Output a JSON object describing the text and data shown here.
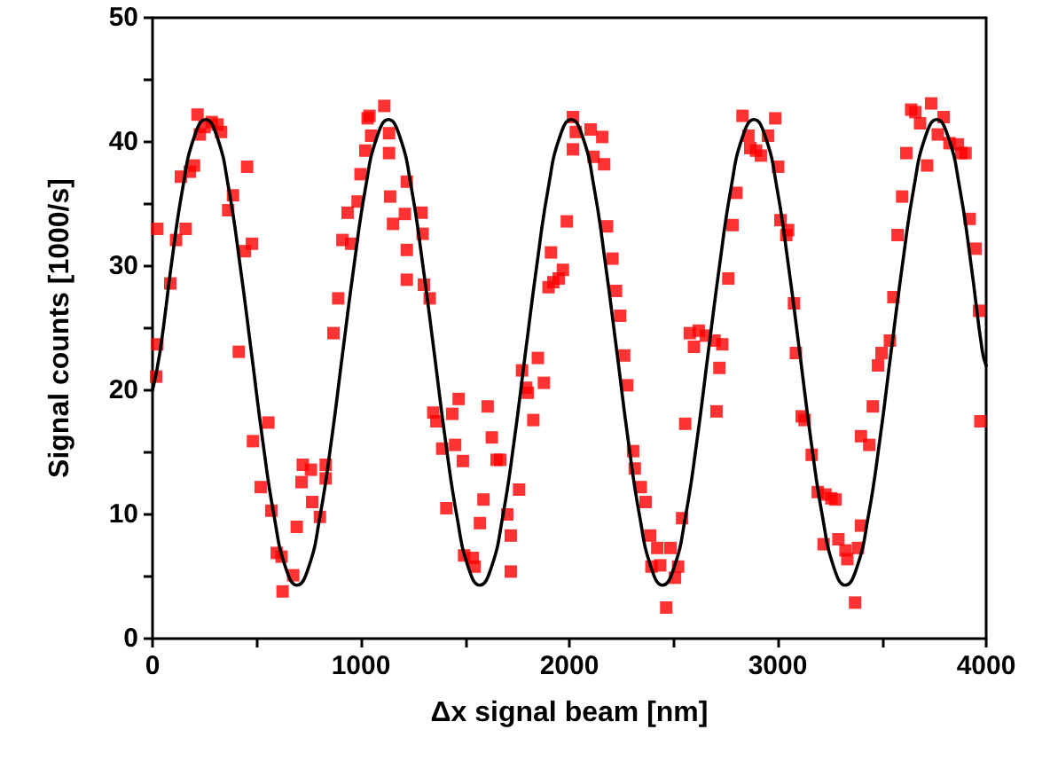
{
  "chart_data": {
    "type": "scatter",
    "xlabel": "Δx signal beam [nm]",
    "ylabel": "Signal counts [1000/s]",
    "xlim": [
      0,
      4000
    ],
    "ylim": [
      0,
      50
    ],
    "xticks": [
      0,
      {
        "value": 500,
        "label": null
      },
      1000,
      {
        "value": 1500,
        "label": null
      },
      2000,
      {
        "value": 2500,
        "label": null
      },
      3000,
      {
        "value": 3500,
        "label": null
      },
      4000
    ],
    "yticks": [
      0,
      {
        "value": 5,
        "label": null
      },
      10,
      {
        "value": 15,
        "label": null
      },
      20,
      {
        "value": 25,
        "label": null
      },
      30,
      {
        "value": 35,
        "label": null
      },
      40,
      {
        "value": 45,
        "label": null
      },
      50
    ],
    "grid": false,
    "series": [
      {
        "type": "scatter",
        "color": "#ff0000",
        "marker": "square",
        "x": [
          23,
          23,
          17,
          85,
          113,
          159,
          136,
          179,
          199,
          216,
          227,
          250,
          284,
          312,
          329,
          454,
          386,
          363,
          477,
          443,
          414,
          556,
          482,
          519,
          570,
          596,
          619,
          624,
          675,
          692,
          721,
          760,
          715,
          766,
          803,
          831,
          831,
          868,
          891,
          911,
          936,
          953,
          984,
          998,
          1021,
          1032,
          1049,
          1041,
          1112,
          1135,
          1135,
          1220,
          1140,
          1154,
          1211,
          1291,
          1296,
          1220,
          1220,
          1302,
          1330,
          1347,
          1362,
          1438,
          1469,
          1390,
          1452,
          1489,
          1410,
          1495,
          1537,
          1546,
          1571,
          1588,
          1608,
          1628,
          1651,
          1668,
          1702,
          1719,
          1719,
          1759,
          1773,
          1793,
          1801,
          1827,
          1849,
          1878,
          1900,
          1923,
          1949,
          1969,
          1912,
          1988,
          2017,
          2017,
          2031,
          2102,
          2158,
          2116,
          2167,
          2181,
          2207,
          2224,
          2244,
          2263,
          2278,
          2306,
          2314,
          2343,
          2366,
          2388,
          2422,
          2394,
          2436,
          2485,
          2522,
          2507,
          2465,
          2541,
          2556,
          2578,
          2598,
          2621,
          2655,
          2697,
          2734,
          2720,
          2706,
          2763,
          2783,
          2802,
          2831,
          2859,
          2868,
          2896,
          2919,
          2953,
          2988,
          3002,
          3013,
          3050,
          3041,
          3078,
          3087,
          3115,
          3129,
          3163,
          3192,
          3229,
          3257,
          3277,
          3220,
          3291,
          3325,
          3334,
          3385,
          3399,
          3371,
          3399,
          3439,
          3456,
          3481,
          3498,
          3538,
          3555,
          3575,
          3597,
          3617,
          3640,
          3660,
          3683,
          3717,
          3736,
          3768,
          3796,
          3824,
          3864,
          3881,
          3901,
          3921,
          3949,
          3966,
          3972
        ],
        "values": [
          33.0,
          23.7,
          21.1,
          28.6,
          32.1,
          33.0,
          37.2,
          37.6,
          38.1,
          42.2,
          40.6,
          41.2,
          41.6,
          41.4,
          40.8,
          38.0,
          35.7,
          34.5,
          31.8,
          31.2,
          23.1,
          17.4,
          15.9,
          12.2,
          10.3,
          6.9,
          6.6,
          3.8,
          5.1,
          9.0,
          14.0,
          13.6,
          12.6,
          11.0,
          9.8,
          14.0,
          12.9,
          24.6,
          27.4,
          32.1,
          34.3,
          31.8,
          35.2,
          37.4,
          39.3,
          41.9,
          40.5,
          42.1,
          42.9,
          40.7,
          39.1,
          36.8,
          35.6,
          33.4,
          34.2,
          34.3,
          32.6,
          31.3,
          28.9,
          28.5,
          27.4,
          18.2,
          17.5,
          18.1,
          19.3,
          15.3,
          15.6,
          14.3,
          10.5,
          6.7,
          6.5,
          5.8,
          9.3,
          11.2,
          18.7,
          16.2,
          14.4,
          14.4,
          10.0,
          8.3,
          5.4,
          12.0,
          21.6,
          20.2,
          19.8,
          17.6,
          22.6,
          20.6,
          28.3,
          28.7,
          29.0,
          29.7,
          31.1,
          33.6,
          42.0,
          39.4,
          40.8,
          41.0,
          40.4,
          38.8,
          38.2,
          33.2,
          30.6,
          28.0,
          26.0,
          22.8,
          20.4,
          15.1,
          13.7,
          12.2,
          11.0,
          8.3,
          7.3,
          5.8,
          5.9,
          7.3,
          5.8,
          4.9,
          2.5,
          9.7,
          17.3,
          24.6,
          23.5,
          24.8,
          24.4,
          24.0,
          23.7,
          21.8,
          18.3,
          29.0,
          33.3,
          35.9,
          42.1,
          40.5,
          39.5,
          39.3,
          38.9,
          40.5,
          41.9,
          38.0,
          33.7,
          32.9,
          32.5,
          27.0,
          23.0,
          17.9,
          17.6,
          14.8,
          11.8,
          11.6,
          11.3,
          11.2,
          7.6,
          8.0,
          7.1,
          6.4,
          7.3,
          9.1,
          2.9,
          16.3,
          15.6,
          18.7,
          22.0,
          23.0,
          24.0,
          27.5,
          32.5,
          35.6,
          39.1,
          42.6,
          42.4,
          41.5,
          38.1,
          43.1,
          40.6,
          42.0,
          39.9,
          39.8,
          39.1,
          39.1,
          33.8,
          31.4,
          26.4,
          17.5
        ]
      },
      {
        "type": "line",
        "color": "#000000",
        "marker": "none",
        "line_style": "solid",
        "x": [
          0,
          36,
          91,
          145,
          200,
          255,
          310,
          365,
          419,
          474,
          529,
          584,
          639,
          693,
          748,
          803,
          858,
          913,
          968,
          1022,
          1077,
          1132,
          1187,
          1242,
          1296,
          1351,
          1406,
          1461,
          1516,
          1570,
          1625,
          1680,
          1735,
          1790,
          1845,
          1899,
          1954,
          2009,
          2064,
          2119,
          2173,
          2228,
          2283,
          2338,
          2393,
          2447,
          2502,
          2557,
          2612,
          2667,
          2722,
          2776,
          2831,
          2886,
          2941,
          2996,
          3050,
          3105,
          3160,
          3215,
          3270,
          3324,
          3379,
          3434,
          3489,
          3544,
          3599,
          3653,
          3708,
          3763,
          3818,
          3873,
          3927,
          3982,
          4000
        ],
        "values": [
          20.0,
          23.1,
          30.2,
          36.3,
          40.4,
          41.8,
          40.4,
          36.3,
          30.2,
          23.1,
          15.9,
          9.8,
          5.7,
          4.3,
          5.7,
          9.8,
          15.9,
          23.1,
          30.2,
          36.3,
          40.4,
          41.8,
          40.4,
          36.3,
          30.2,
          23.1,
          15.9,
          9.8,
          5.7,
          4.3,
          5.7,
          9.8,
          15.9,
          23.1,
          30.2,
          36.3,
          40.4,
          41.8,
          40.4,
          36.3,
          30.2,
          23.1,
          15.9,
          9.8,
          5.7,
          4.3,
          5.7,
          9.8,
          15.9,
          23.1,
          30.2,
          36.3,
          40.4,
          41.8,
          40.4,
          36.3,
          30.2,
          23.1,
          15.9,
          9.8,
          5.7,
          4.3,
          5.7,
          9.8,
          15.9,
          23.1,
          30.2,
          36.3,
          40.4,
          41.8,
          40.4,
          36.3,
          30.2,
          23.1,
          22.0
        ]
      }
    ]
  }
}
